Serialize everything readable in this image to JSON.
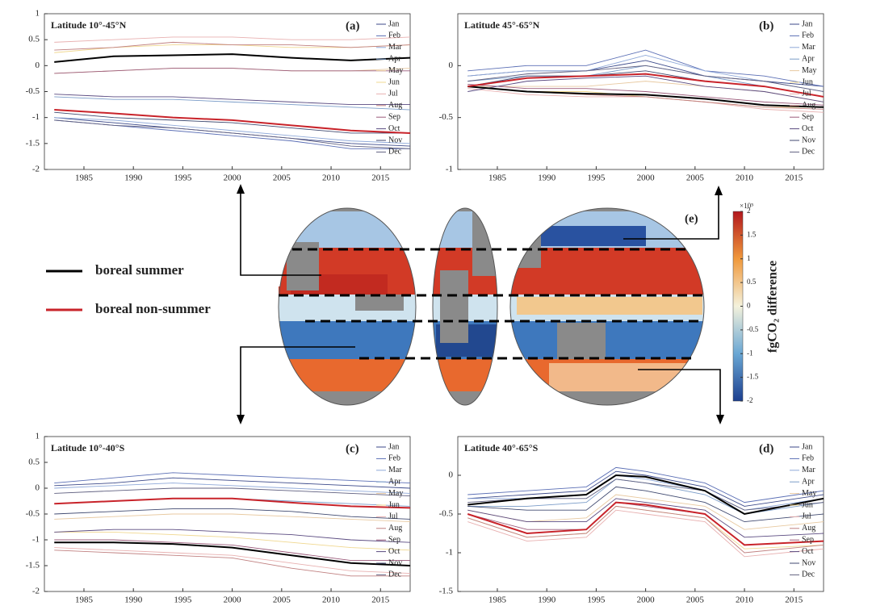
{
  "legend": [
    {
      "name": "boreal summer",
      "color": "#000000"
    },
    {
      "name": "boreal non-summer",
      "color": "#c8232a"
    }
  ],
  "map": {
    "label": "(e)"
  },
  "colorbar": {
    "title": "fgCO₂ difference",
    "multiplier": "×10⁵",
    "ylim": [
      -2,
      2
    ],
    "yticks": [
      -2,
      -1.5,
      -1,
      -0.5,
      0,
      0.5,
      1,
      1.5,
      2
    ]
  },
  "chart_data": [
    {
      "type": "line",
      "title": "Latitude 10°-45°N",
      "panel": "(a)",
      "x": [
        1982,
        1988,
        1994,
        2000,
        2006,
        2012,
        2018
      ],
      "xlim": [
        1981,
        2018
      ],
      "xticks": [
        1985,
        1990,
        1995,
        2000,
        2005,
        2010,
        2015
      ],
      "ylim": [
        -2,
        1
      ],
      "yticks": [
        -2,
        -1.5,
        -1,
        -0.5,
        0,
        0.5,
        1
      ],
      "series": [
        {
          "name": "Jan",
          "color": "#3c4a8a",
          "values": [
            -1.0,
            -1.1,
            -1.2,
            -1.3,
            -1.4,
            -1.5,
            -1.55
          ]
        },
        {
          "name": "Feb",
          "color": "#5b6fb5",
          "values": [
            -1.05,
            -1.15,
            -1.25,
            -1.35,
            -1.45,
            -1.6,
            -1.6
          ]
        },
        {
          "name": "Mar",
          "color": "#8fa9d9",
          "values": [
            -1.0,
            -1.05,
            -1.15,
            -1.25,
            -1.35,
            -1.45,
            -1.5
          ]
        },
        {
          "name": "Apr",
          "color": "#7a9cc8",
          "values": [
            -0.6,
            -0.65,
            -0.65,
            -0.7,
            -0.75,
            -0.8,
            -0.85
          ]
        },
        {
          "name": "May",
          "color": "#e8c9a0",
          "values": [
            -0.15,
            -0.1,
            -0.05,
            -0.05,
            -0.1,
            -0.1,
            -0.05
          ]
        },
        {
          "name": "Jun",
          "color": "#f0d890",
          "values": [
            0.25,
            0.35,
            0.4,
            0.4,
            0.35,
            0.35,
            0.4
          ]
        },
        {
          "name": "Jul",
          "color": "#e8b0b0",
          "values": [
            0.45,
            0.5,
            0.55,
            0.55,
            0.5,
            0.5,
            0.55
          ]
        },
        {
          "name": "Aug",
          "color": "#c08080",
          "values": [
            0.3,
            0.35,
            0.45,
            0.4,
            0.4,
            0.35,
            0.4
          ]
        },
        {
          "name": "Sep",
          "color": "#9b5a7a",
          "values": [
            -0.15,
            -0.1,
            -0.05,
            -0.05,
            -0.1,
            -0.1,
            -0.1
          ]
        },
        {
          "name": "Oct",
          "color": "#5a4a80",
          "values": [
            -0.55,
            -0.6,
            -0.6,
            -0.65,
            -0.7,
            -0.75,
            -0.75
          ]
        },
        {
          "name": "Nov",
          "color": "#404a70",
          "values": [
            -0.9,
            -1.0,
            -1.05,
            -1.1,
            -1.2,
            -1.3,
            -1.3
          ]
        },
        {
          "name": "Dec",
          "color": "#606080",
          "values": [
            -1.05,
            -1.15,
            -1.2,
            -1.3,
            -1.4,
            -1.55,
            -1.6
          ]
        }
      ],
      "summer": {
        "values": [
          0.07,
          0.18,
          0.2,
          0.22,
          0.15,
          0.1,
          0.15
        ]
      },
      "non_summer": {
        "values": [
          -0.85,
          -0.92,
          -1.0,
          -1.05,
          -1.15,
          -1.25,
          -1.3
        ]
      }
    },
    {
      "type": "line",
      "title": "Latitude 45°-65°N",
      "panel": "(b)",
      "x": [
        1982,
        1988,
        1994,
        2000,
        2006,
        2012,
        2018
      ],
      "xlim": [
        1981,
        2018
      ],
      "xticks": [
        1985,
        1990,
        1995,
        2000,
        2005,
        2010,
        2015
      ],
      "ylim": [
        -1,
        0.5
      ],
      "yticks": [
        -1,
        -0.5,
        0
      ],
      "series": [
        {
          "name": "Jan",
          "color": "#3c4a8a",
          "values": [
            -0.1,
            -0.05,
            -0.05,
            0.05,
            -0.1,
            -0.15,
            -0.2
          ]
        },
        {
          "name": "Feb",
          "color": "#5b6fb5",
          "values": [
            -0.05,
            0.0,
            0.0,
            0.15,
            -0.05,
            -0.1,
            -0.2
          ]
        },
        {
          "name": "Mar",
          "color": "#8fa9d9",
          "values": [
            -0.1,
            -0.05,
            -0.05,
            0.1,
            -0.05,
            -0.15,
            -0.25
          ]
        },
        {
          "name": "Apr",
          "color": "#7a9cc8",
          "values": [
            -0.15,
            -0.1,
            -0.1,
            0.0,
            -0.1,
            -0.2,
            -0.3
          ]
        },
        {
          "name": "May",
          "color": "#e8c9a0",
          "values": [
            -0.2,
            -0.2,
            -0.2,
            -0.15,
            -0.2,
            -0.25,
            -0.35
          ]
        },
        {
          "name": "Jun",
          "color": "#f0d890",
          "values": [
            -0.2,
            -0.25,
            -0.25,
            -0.3,
            -0.35,
            -0.4,
            -0.4
          ]
        },
        {
          "name": "Jul",
          "color": "#e8b0b0",
          "values": [
            -0.22,
            -0.28,
            -0.3,
            -0.3,
            -0.35,
            -0.42,
            -0.45
          ]
        },
        {
          "name": "Aug",
          "color": "#c08080",
          "values": [
            -0.2,
            -0.25,
            -0.28,
            -0.3,
            -0.35,
            -0.4,
            -0.42
          ]
        },
        {
          "name": "Sep",
          "color": "#9b5a7a",
          "values": [
            -0.18,
            -0.22,
            -0.22,
            -0.25,
            -0.3,
            -0.35,
            -0.38
          ]
        },
        {
          "name": "Oct",
          "color": "#5a4a80",
          "values": [
            -0.25,
            -0.15,
            -0.12,
            -0.1,
            -0.2,
            -0.25,
            -0.35
          ]
        },
        {
          "name": "Nov",
          "color": "#404a70",
          "values": [
            -0.2,
            -0.1,
            -0.1,
            -0.05,
            -0.15,
            -0.2,
            -0.3
          ]
        },
        {
          "name": "Dec",
          "color": "#606080",
          "values": [
            -0.15,
            -0.08,
            -0.05,
            0.0,
            -0.1,
            -0.15,
            -0.25
          ]
        }
      ],
      "summer": {
        "values": [
          -0.2,
          -0.25,
          -0.27,
          -0.28,
          -0.32,
          -0.38,
          -0.4
        ]
      },
      "non_summer": {
        "values": [
          -0.2,
          -0.12,
          -0.1,
          -0.08,
          -0.15,
          -0.2,
          -0.3
        ]
      }
    },
    {
      "type": "line",
      "title": "Latitude 10°-40°S",
      "panel": "(c)",
      "x": [
        1982,
        1988,
        1994,
        2000,
        2006,
        2012,
        2018
      ],
      "xlim": [
        1981,
        2018
      ],
      "xticks": [
        1985,
        1990,
        1995,
        2000,
        2005,
        2010,
        2015
      ],
      "ylim": [
        -2,
        1
      ],
      "yticks": [
        -2,
        -1.5,
        -1,
        -0.5,
        0,
        0.5,
        1
      ],
      "series": [
        {
          "name": "Jan",
          "color": "#3c4a8a",
          "values": [
            0.05,
            0.1,
            0.2,
            0.15,
            0.1,
            0.05,
            0.0
          ]
        },
        {
          "name": "Feb",
          "color": "#5b6fb5",
          "values": [
            0.1,
            0.2,
            0.3,
            0.25,
            0.2,
            0.15,
            0.1
          ]
        },
        {
          "name": "Mar",
          "color": "#8fa9d9",
          "values": [
            0.0,
            0.05,
            0.1,
            0.05,
            0.0,
            -0.05,
            -0.1
          ]
        },
        {
          "name": "Apr",
          "color": "#7a9cc8",
          "values": [
            -0.3,
            -0.25,
            -0.2,
            -0.2,
            -0.25,
            -0.3,
            -0.35
          ]
        },
        {
          "name": "May",
          "color": "#e8c9a0",
          "values": [
            -0.6,
            -0.55,
            -0.5,
            -0.5,
            -0.55,
            -0.6,
            -0.65
          ]
        },
        {
          "name": "Jun",
          "color": "#f0d890",
          "values": [
            -0.85,
            -0.85,
            -0.9,
            -0.95,
            -1.05,
            -1.15,
            -1.2
          ]
        },
        {
          "name": "Jul",
          "color": "#e8b0b0",
          "values": [
            -1.15,
            -1.2,
            -1.25,
            -1.3,
            -1.45,
            -1.6,
            -1.65
          ]
        },
        {
          "name": "Aug",
          "color": "#c08080",
          "values": [
            -1.2,
            -1.25,
            -1.3,
            -1.35,
            -1.55,
            -1.7,
            -1.7
          ]
        },
        {
          "name": "Sep",
          "color": "#9b5a7a",
          "values": [
            -1.0,
            -1.0,
            -1.05,
            -1.1,
            -1.25,
            -1.4,
            -1.4
          ]
        },
        {
          "name": "Oct",
          "color": "#5a4a80",
          "values": [
            -0.85,
            -0.8,
            -0.8,
            -0.85,
            -0.9,
            -1.0,
            -1.05
          ]
        },
        {
          "name": "Nov",
          "color": "#404a70",
          "values": [
            -0.5,
            -0.45,
            -0.4,
            -0.4,
            -0.45,
            -0.55,
            -0.6
          ]
        },
        {
          "name": "Dec",
          "color": "#606080",
          "values": [
            -0.1,
            -0.05,
            0.0,
            0.0,
            -0.05,
            -0.1,
            -0.15
          ]
        }
      ],
      "summer": {
        "values": [
          -1.05,
          -1.05,
          -1.08,
          -1.15,
          -1.3,
          -1.45,
          -1.5
        ]
      },
      "non_summer": {
        "values": [
          -0.3,
          -0.25,
          -0.2,
          -0.2,
          -0.28,
          -0.35,
          -0.38
        ]
      }
    },
    {
      "type": "line",
      "title": "Latitude 40°-65°S",
      "panel": "(d)",
      "x": [
        1982,
        1988,
        1994,
        1997,
        2000,
        2006,
        2010,
        2018
      ],
      "xlim": [
        1981,
        2018
      ],
      "xticks": [
        1985,
        1990,
        1995,
        2000,
        2005,
        2010,
        2015
      ],
      "ylim": [
        -1.5,
        0.5
      ],
      "yticks": [
        -1.5,
        -1,
        -0.5,
        0
      ],
      "series": [
        {
          "name": "Jan",
          "color": "#3c4a8a",
          "values": [
            -0.3,
            -0.25,
            -0.2,
            0.05,
            0.0,
            -0.15,
            -0.4,
            -0.25
          ]
        },
        {
          "name": "Feb",
          "color": "#5b6fb5",
          "values": [
            -0.25,
            -0.2,
            -0.15,
            0.1,
            0.05,
            -0.1,
            -0.35,
            -0.2
          ]
        },
        {
          "name": "Mar",
          "color": "#8fa9d9",
          "values": [
            -0.3,
            -0.3,
            -0.25,
            0.0,
            -0.05,
            -0.2,
            -0.45,
            -0.3
          ]
        },
        {
          "name": "Apr",
          "color": "#7a9cc8",
          "values": [
            -0.4,
            -0.4,
            -0.35,
            -0.05,
            -0.1,
            -0.25,
            -0.5,
            -0.35
          ]
        },
        {
          "name": "May",
          "color": "#e8c9a0",
          "values": [
            -0.45,
            -0.6,
            -0.55,
            -0.25,
            -0.3,
            -0.4,
            -0.7,
            -0.6
          ]
        },
        {
          "name": "Jun",
          "color": "#f0d890",
          "values": [
            -0.55,
            -0.8,
            -0.75,
            -0.4,
            -0.45,
            -0.55,
            -0.95,
            -0.9
          ]
        },
        {
          "name": "Jul",
          "color": "#e8b0b0",
          "values": [
            -0.6,
            -0.85,
            -0.8,
            -0.45,
            -0.5,
            -0.6,
            -1.05,
            -0.95
          ]
        },
        {
          "name": "Aug",
          "color": "#c08080",
          "values": [
            -0.55,
            -0.8,
            -0.75,
            -0.4,
            -0.45,
            -0.55,
            -1.0,
            -0.9
          ]
        },
        {
          "name": "Sep",
          "color": "#9b5a7a",
          "values": [
            -0.5,
            -0.7,
            -0.7,
            -0.35,
            -0.4,
            -0.5,
            -0.9,
            -0.85
          ]
        },
        {
          "name": "Oct",
          "color": "#5a4a80",
          "values": [
            -0.45,
            -0.6,
            -0.6,
            -0.3,
            -0.35,
            -0.45,
            -0.8,
            -0.75
          ]
        },
        {
          "name": "Nov",
          "color": "#404a70",
          "values": [
            -0.4,
            -0.45,
            -0.45,
            -0.15,
            -0.2,
            -0.35,
            -0.6,
            -0.5
          ]
        },
        {
          "name": "Dec",
          "color": "#606080",
          "values": [
            -0.35,
            -0.3,
            -0.3,
            -0.05,
            -0.1,
            -0.2,
            -0.45,
            -0.35
          ]
        }
      ],
      "summer": {
        "values": [
          -0.38,
          -0.3,
          -0.25,
          0.0,
          -0.02,
          -0.2,
          -0.5,
          -0.3
        ]
      },
      "non_summer": {
        "values": [
          -0.5,
          -0.75,
          -0.7,
          -0.35,
          -0.38,
          -0.5,
          -0.9,
          -0.85
        ]
      }
    }
  ]
}
